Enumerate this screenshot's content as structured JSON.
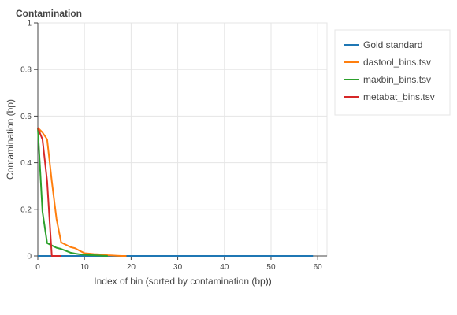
{
  "chart_data": {
    "type": "line",
    "title": "Contamination",
    "xlabel": "Index of bin (sorted by contamination (bp))",
    "ylabel": "Contamination (bp)",
    "xlim": [
      0,
      62
    ],
    "ylim": [
      0,
      1
    ],
    "x_ticks": [
      0,
      10,
      20,
      30,
      40,
      50,
      60
    ],
    "y_ticks": [
      0,
      0.2,
      0.4,
      0.6,
      0.8,
      1
    ],
    "grid": true,
    "legend_position": "right",
    "series": [
      {
        "name": "Gold standard",
        "color": "#1f77b4",
        "x": [
          0,
          59
        ],
        "y": [
          0,
          0
        ]
      },
      {
        "name": "dastool_bins.tsv",
        "color": "#ff7f0e",
        "x": [
          0,
          1,
          2,
          3,
          4,
          5,
          6,
          7,
          8,
          9,
          10,
          11,
          12,
          13,
          14,
          15,
          16,
          17,
          18,
          19
        ],
        "y": [
          0.55,
          0.53,
          0.5,
          0.32,
          0.16,
          0.058,
          0.048,
          0.038,
          0.033,
          0.022,
          0.012,
          0.01,
          0.008,
          0.007,
          0.006,
          0.003,
          0.002,
          0.001,
          0.0,
          0.0
        ]
      },
      {
        "name": "maxbin_bins.tsv",
        "color": "#2ca02c",
        "x": [
          0,
          1,
          2,
          3,
          4,
          5,
          6,
          7,
          8,
          9,
          10,
          11,
          12,
          13,
          14,
          15
        ],
        "y": [
          0.55,
          0.19,
          0.055,
          0.045,
          0.035,
          0.03,
          0.022,
          0.014,
          0.01,
          0.007,
          0.005,
          0.004,
          0.003,
          0.002,
          0.001,
          0.0
        ]
      },
      {
        "name": "metabat_bins.tsv",
        "color": "#d62728",
        "x": [
          0,
          1,
          2,
          3,
          4,
          5
        ],
        "y": [
          0.55,
          0.5,
          0.32,
          0.0,
          0.0,
          0.0
        ]
      }
    ]
  }
}
